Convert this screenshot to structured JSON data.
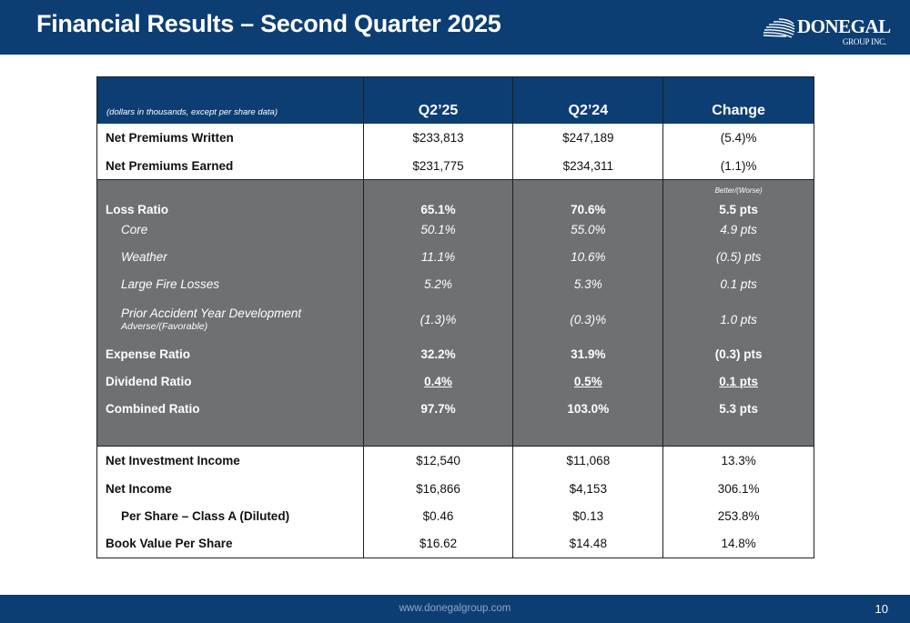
{
  "header": {
    "title": "Financial Results – Second Quarter 2025",
    "logo_word": "DONEGAL",
    "logo_sub": "GROUP INC."
  },
  "table": {
    "note": "(dollars in thousands, except per share data)",
    "col_q225": "Q2’25",
    "col_q224": "Q2’24",
    "col_change": "Change",
    "change_subhead": "Better/(Worse)",
    "top_rows": [
      {
        "label": "Net Premiums Written",
        "q225": "$233,813",
        "q224": "$247,189",
        "change": "(5.4)%"
      },
      {
        "label": "Net Premiums Earned",
        "q225": "$231,775",
        "q224": "$234,311",
        "change": "(1.1)%"
      }
    ],
    "ratio_rows": [
      {
        "label": "Loss Ratio",
        "q225": "65.1%",
        "q224": "70.6%",
        "change": "5.5 pts"
      },
      {
        "label": "Core",
        "q225": "50.1%",
        "q224": "55.0%",
        "change": "4.9 pts"
      },
      {
        "label": "Weather",
        "q225": "11.1%",
        "q224": "10.6%",
        "change": "(0.5) pts"
      },
      {
        "label": "Large Fire Losses",
        "q225": "5.2%",
        "q224": "5.3%",
        "change": "0.1 pts"
      },
      {
        "label": "Prior Accident Year Development",
        "sublabel": "Adverse/(Favorable)",
        "q225": "(1.3)%",
        "q224": "(0.3)%",
        "change": "1.0 pts"
      },
      {
        "label": "Expense Ratio",
        "q225": "32.2%",
        "q224": "31.9%",
        "change": "(0.3) pts"
      },
      {
        "label": "Dividend Ratio",
        "q225": "0.4%",
        "q224": "0.5%",
        "change": "0.1 pts"
      },
      {
        "label": "Combined Ratio",
        "q225": "97.7%",
        "q224": "103.0%",
        "change": "5.3 pts"
      }
    ],
    "bottom_rows": [
      {
        "label": "Net Investment Income",
        "q225": "$12,540",
        "q224": "$11,068",
        "change": "13.3%"
      },
      {
        "label": "Net Income",
        "q225": "$16,866",
        "q224": "$4,153",
        "change": "306.1%"
      },
      {
        "label": "Per Share – Class A (Diluted)",
        "q225": "$0.46",
        "q224": "$0.13",
        "change": "253.8%"
      },
      {
        "label": "Book Value Per Share",
        "q225": "$16.62",
        "q224": "$14.48",
        "change": "14.8%"
      }
    ]
  },
  "footer": {
    "url": "www.donegalgroup.com",
    "page_number": "10"
  },
  "colors": {
    "brand_navy": "#0d3e73",
    "grey_block": "#6e7072"
  }
}
